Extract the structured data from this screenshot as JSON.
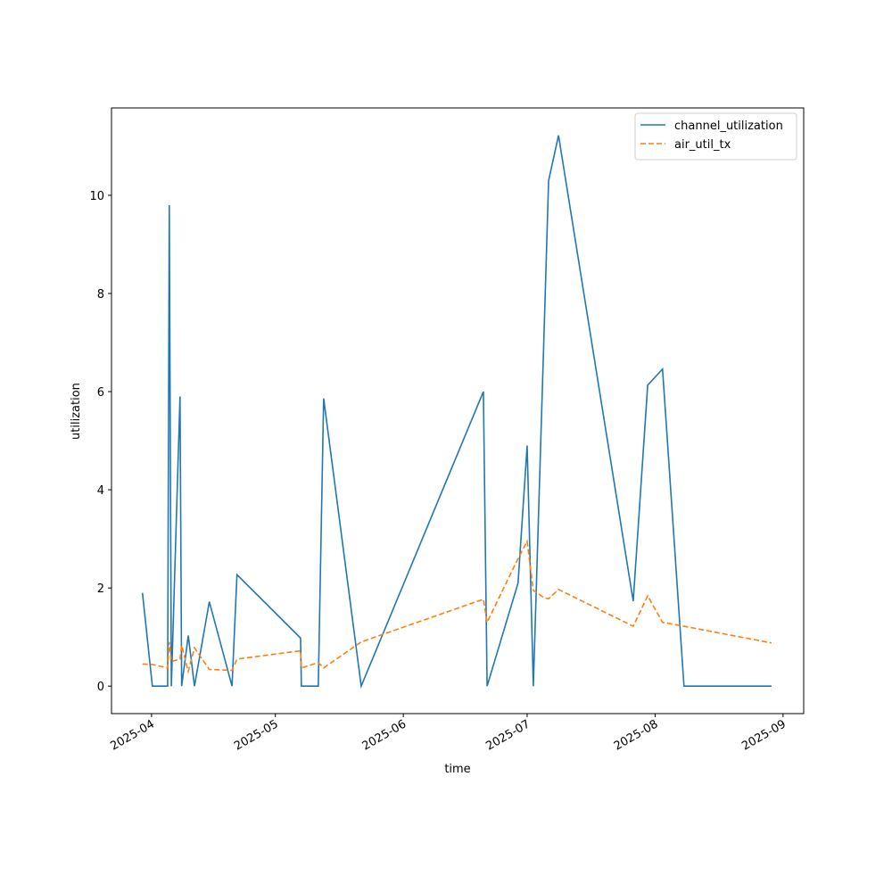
{
  "chart_data": {
    "type": "line",
    "x": [
      20176.8,
      20179.2,
      20182.9,
      20183.3,
      20183.8,
      20185.9,
      20186.3,
      20187.9,
      20189.4,
      20193.0,
      20198.5,
      20199.7,
      20215.1,
      20215.3,
      20219.4,
      20220.7,
      20229.8,
      20259.4,
      20260.3,
      20267.8,
      20270.0,
      20271.5,
      20274.1,
      20275.2,
      20277.6,
      20295.7,
      20299.2,
      20302.8,
      20308.0,
      20329.2
    ],
    "series": [
      {
        "name": "channel_utilization",
        "color": "#1f77b4",
        "dash": "solid",
        "values": [
          1.9,
          0,
          0,
          9.8,
          0,
          5.9,
          0,
          1.03,
          0,
          1.72,
          0,
          2.27,
          0.98,
          0,
          0,
          5.86,
          0,
          6.0,
          0,
          2.1,
          4.9,
          0,
          7.2,
          10.3,
          11.22,
          1.73,
          6.13,
          6.46,
          0,
          0
        ]
      },
      {
        "name": "air_util_tx",
        "color": "#ff7f0e",
        "dash": "dashed",
        "values": [
          0.45,
          0.44,
          0.37,
          0.9,
          0.5,
          0.55,
          0.83,
          0.3,
          0.78,
          0.34,
          0.32,
          0.55,
          0.72,
          0.37,
          0.48,
          0.37,
          0.9,
          1.77,
          1.3,
          2.6,
          2.95,
          1.95,
          1.8,
          1.78,
          1.97,
          1.22,
          1.84,
          1.3,
          1.22,
          0.88
        ]
      }
    ],
    "x_label": "time",
    "y_label": "utilization",
    "xlim": [
      20169.3,
      20337.0
    ],
    "xticks": [
      {
        "value": 20179,
        "label": "2025-04"
      },
      {
        "value": 20209,
        "label": "2025-05"
      },
      {
        "value": 20240,
        "label": "2025-06"
      },
      {
        "value": 20270,
        "label": "2025-07"
      },
      {
        "value": 20301,
        "label": "2025-08"
      },
      {
        "value": 20332,
        "label": "2025-09"
      }
    ],
    "ylim": [
      -0.56,
      11.78
    ],
    "yticks": [
      0,
      2,
      4,
      6,
      8,
      10
    ],
    "legend": "upper right"
  }
}
